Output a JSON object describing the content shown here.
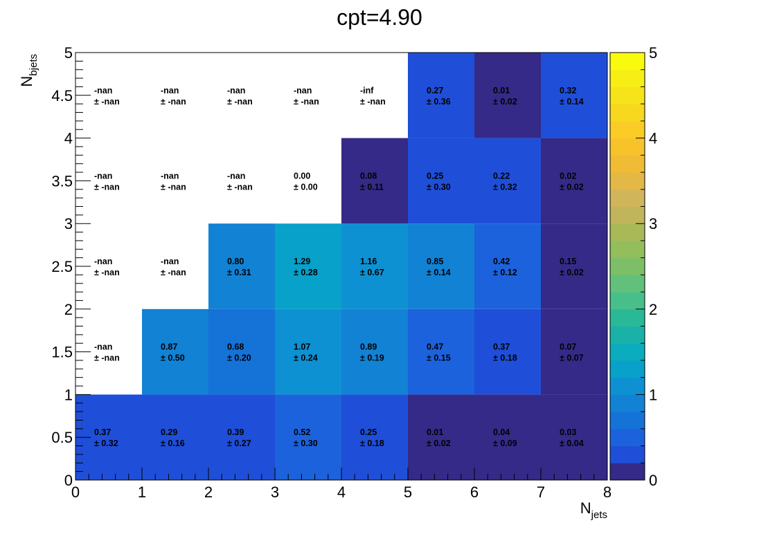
{
  "chart_data": {
    "type": "heatmap",
    "title": "cpt=4.90",
    "xlabel": {
      "main": "N",
      "sub": "jets"
    },
    "ylabel": {
      "main": "N",
      "sub": "bjets"
    },
    "x_edges": [
      0,
      1,
      2,
      3,
      4,
      5,
      6,
      7,
      8
    ],
    "y_edges": [
      0,
      1,
      2,
      3,
      4,
      5
    ],
    "xlim": [
      0,
      8
    ],
    "ylim": [
      0,
      5
    ],
    "x_ticks": [
      "0",
      "1",
      "2",
      "3",
      "4",
      "5",
      "6",
      "7",
      "8"
    ],
    "y_ticks": [
      "0",
      "0.5",
      "1",
      "1.5",
      "2",
      "2.5",
      "3",
      "3.5",
      "4",
      "4.5",
      "5"
    ],
    "colorbar": {
      "range": [
        0,
        5
      ],
      "ticks": [
        "0",
        "1",
        "2",
        "3",
        "4",
        "5"
      ],
      "palette": [
        "#352a87",
        "#1f4fd8",
        "#1c62dc",
        "#1572d7",
        "#1282d4",
        "#0e91d2",
        "#07a1ca",
        "#0bacbd",
        "#1ab1a9",
        "#2ab996",
        "#48bf8b",
        "#62c07a",
        "#7cbf68",
        "#93be5b",
        "#aab958",
        "#c0b55b",
        "#d1b55a",
        "#e4b846",
        "#f1bc35",
        "#f8c22a",
        "#fbcc25",
        "#f8d81e",
        "#f6e319",
        "#f7ee15",
        "#f9fb0e"
      ]
    },
    "rows": [
      {
        "y_bin": "0-1",
        "values": [
          "0.37",
          "0.29",
          "0.39",
          "0.52",
          "0.25",
          "0.01",
          "0.04",
          "0.03"
        ],
        "errors": [
          "0.32",
          "0.16",
          "0.27",
          "0.30",
          "0.18",
          "0.02",
          "0.09",
          "0.04"
        ]
      },
      {
        "y_bin": "1-2",
        "values": [
          "-nan",
          "0.87",
          "0.68",
          "1.07",
          "0.89",
          "0.47",
          "0.37",
          "0.07"
        ],
        "errors": [
          "-nan",
          "0.50",
          "0.20",
          "0.24",
          "0.19",
          "0.15",
          "0.18",
          "0.07"
        ]
      },
      {
        "y_bin": "2-3",
        "values": [
          "-nan",
          "-nan",
          "0.80",
          "1.29",
          "1.16",
          "0.85",
          "0.42",
          "0.15"
        ],
        "errors": [
          "-nan",
          "-nan",
          "0.31",
          "0.28",
          "0.67",
          "0.14",
          "0.12",
          "0.02"
        ]
      },
      {
        "y_bin": "3-4",
        "values": [
          "-nan",
          "-nan",
          "-nan",
          "0.00",
          "0.08",
          "0.25",
          "0.22",
          "0.02"
        ],
        "errors": [
          "-nan",
          "-nan",
          "-nan",
          "0.00",
          "0.11",
          "0.30",
          "0.32",
          "0.02"
        ]
      },
      {
        "y_bin": "4-5",
        "values": [
          "-nan",
          "-nan",
          "-nan",
          "-nan",
          "-inf",
          "0.27",
          "0.01",
          "0.32"
        ],
        "errors": [
          "-nan",
          "-nan",
          "-nan",
          "-nan",
          "-nan",
          "0.36",
          "0.02",
          "0.14"
        ]
      }
    ]
  }
}
